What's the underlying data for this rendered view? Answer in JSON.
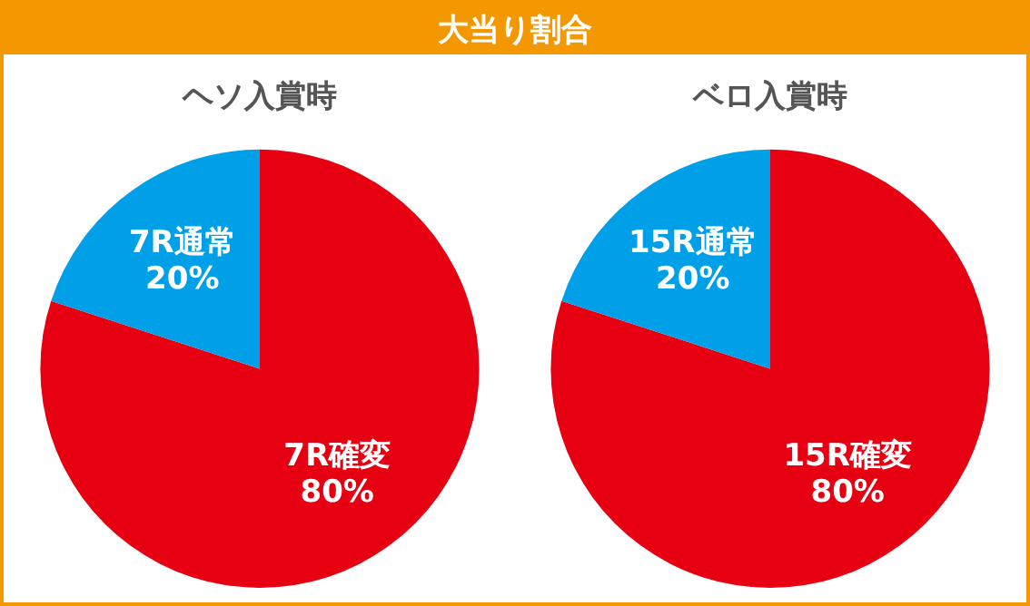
{
  "chart_data": [
    {
      "type": "other",
      "title": "大当り割合"
    },
    {
      "type": "pie",
      "title": "ヘソ入賞時",
      "categories": [
        "7R確変",
        "7R通常"
      ],
      "values": [
        80,
        20
      ],
      "colors": [
        "#e60012",
        "#00a0e9"
      ],
      "value_labels": [
        "80%",
        "20%"
      ]
    },
    {
      "type": "pie",
      "title": "ベロ入賞時",
      "categories": [
        "15R確変",
        "15R通常"
      ],
      "values": [
        80,
        20
      ],
      "colors": [
        "#e60012",
        "#00a0e9"
      ],
      "value_labels": [
        "80%",
        "20%"
      ]
    }
  ]
}
